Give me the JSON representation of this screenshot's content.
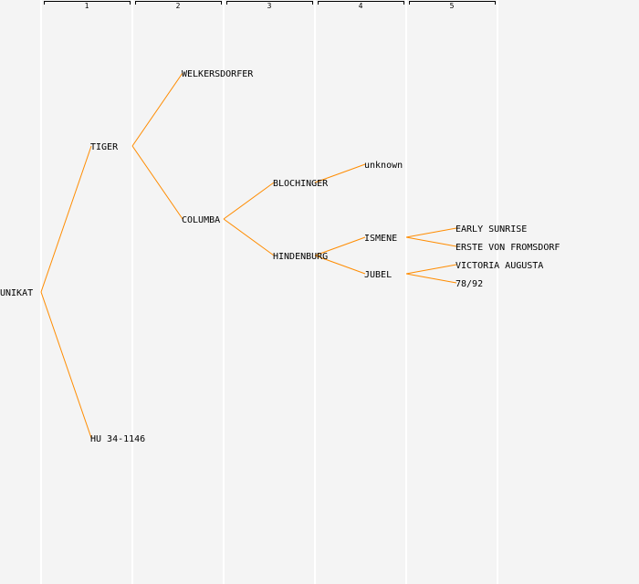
{
  "generations": [
    "1",
    "2",
    "3",
    "4",
    "5"
  ],
  "colors": {
    "line": "#ff8c00",
    "background": "#f4f4f4",
    "divider": "#ffffff"
  },
  "nodes": [
    {
      "id": "unikat",
      "name": "UNIKAT",
      "gen": 0,
      "slot": 0
    },
    {
      "id": "tiger",
      "name": "TIGER",
      "gen": 1,
      "parent": "unikat"
    },
    {
      "id": "hu",
      "name": "HU 34-1146",
      "gen": 1,
      "parent": "unikat"
    },
    {
      "id": "welkersdorfer",
      "name": "WELKERSDORFER",
      "gen": 2,
      "parent": "tiger"
    },
    {
      "id": "columba",
      "name": "COLUMBA",
      "gen": 2,
      "parent": "tiger"
    },
    {
      "id": "blochinger",
      "name": "BLOCHINGER",
      "gen": 3,
      "parent": "columba"
    },
    {
      "id": "hindenburg",
      "name": "HINDENBURG",
      "gen": 3,
      "parent": "columba"
    },
    {
      "id": "unknown",
      "name": "unknown",
      "gen": 4,
      "parent": "blochinger"
    },
    {
      "id": "ismene",
      "name": "ISMENE",
      "gen": 4,
      "parent": "hindenburg"
    },
    {
      "id": "jubel",
      "name": "JUBEL",
      "gen": 4,
      "parent": "hindenburg"
    },
    {
      "id": "early",
      "name": "EARLY SUNRISE",
      "gen": 5,
      "parent": "ismene"
    },
    {
      "id": "erste",
      "name": "ERSTE VON FROMSDORF",
      "gen": 5,
      "parent": "ismene"
    },
    {
      "id": "victoria",
      "name": "VICTORIA AUGUSTA",
      "gen": 5,
      "parent": "jubel"
    },
    {
      "id": "n7892",
      "name": "78/92",
      "gen": 5,
      "parent": "jubel"
    }
  ]
}
